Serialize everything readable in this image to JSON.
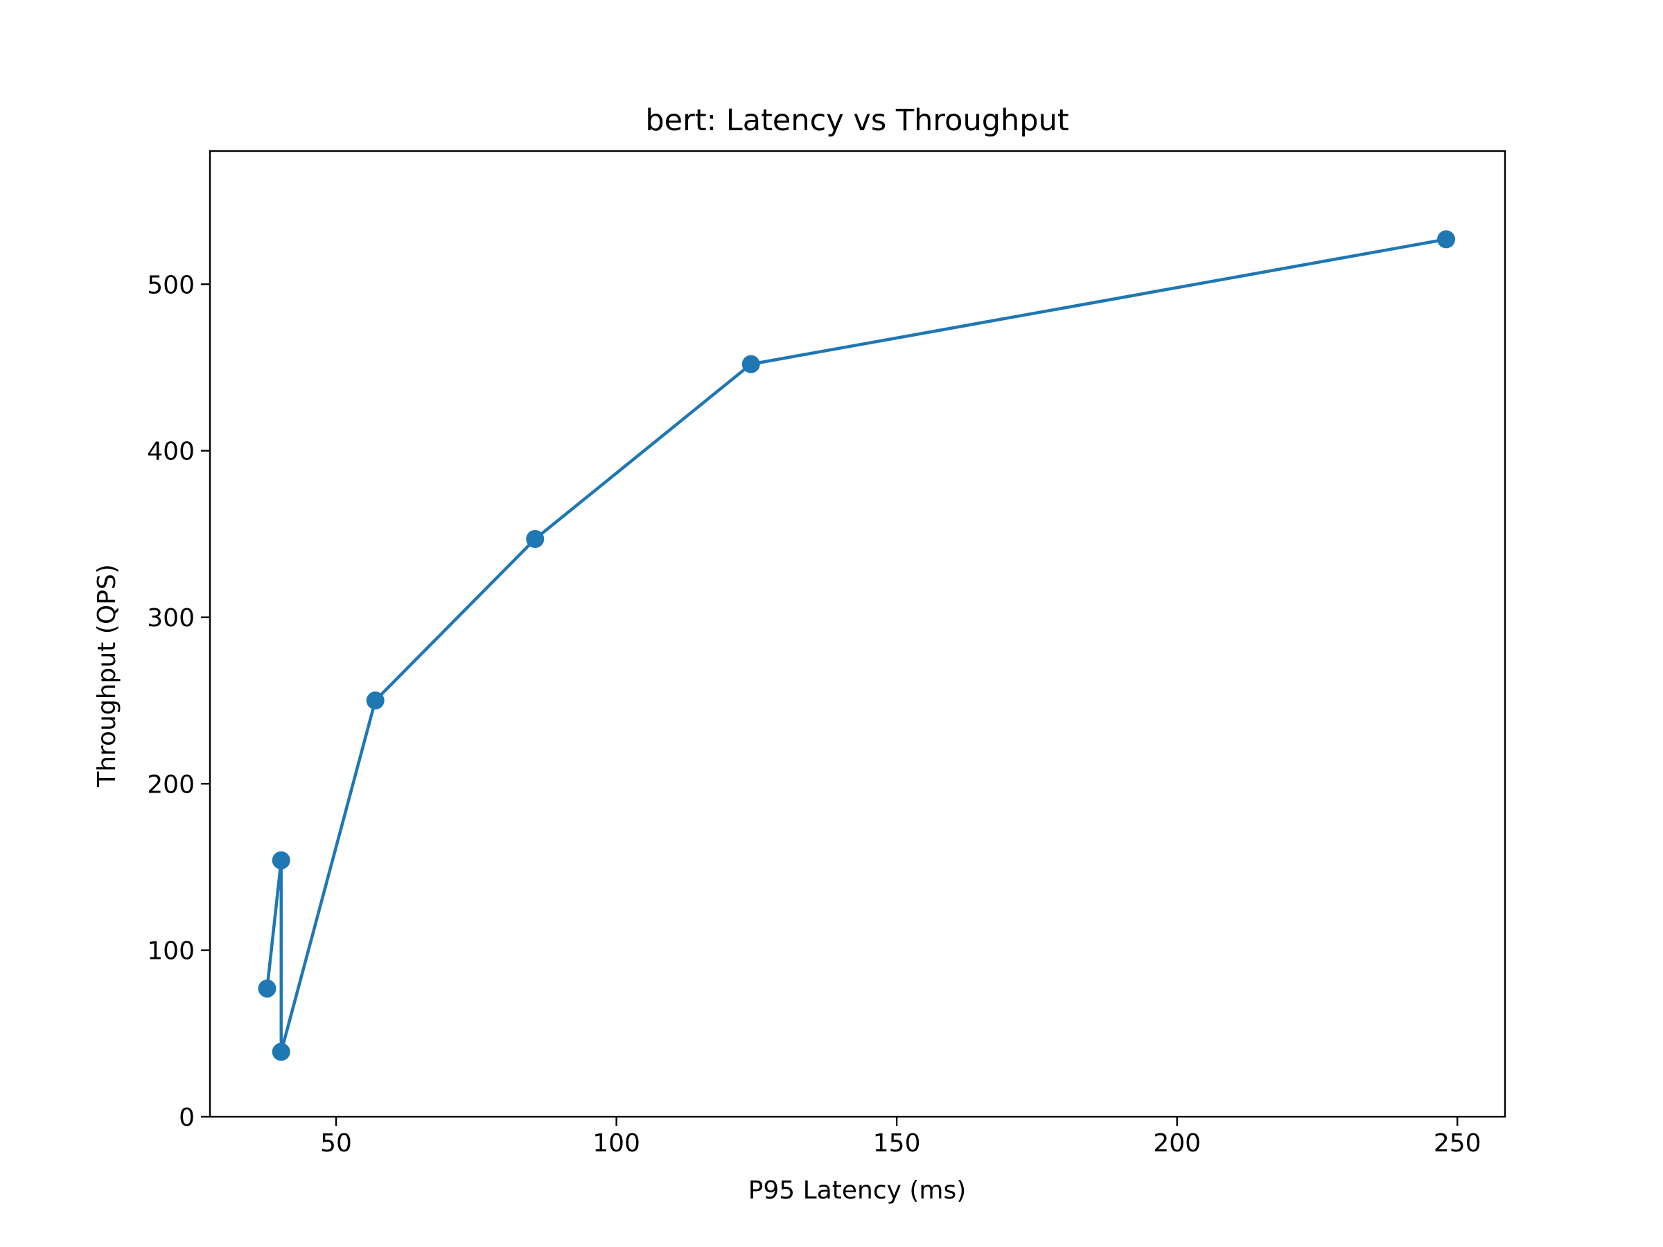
{
  "chart_data": {
    "type": "line",
    "title": "bert: Latency vs Throughput",
    "xlabel": "P95 Latency (ms)",
    "ylabel": "Throughput (QPS)",
    "xlim": [
      27.5,
      258.5
    ],
    "ylim": [
      0,
      580
    ],
    "xticks": [
      50,
      100,
      150,
      200,
      250
    ],
    "yticks": [
      0,
      100,
      200,
      300,
      400,
      500
    ],
    "grid": false,
    "legend": null,
    "series": [
      {
        "name": "bert",
        "color": "#1f77b4",
        "marker": "circle",
        "x": [
          37.7,
          40.2,
          40.2,
          57.0,
          85.5,
          124.0,
          248.0
        ],
        "y": [
          77,
          154,
          39,
          250,
          347,
          452,
          527
        ]
      }
    ]
  }
}
